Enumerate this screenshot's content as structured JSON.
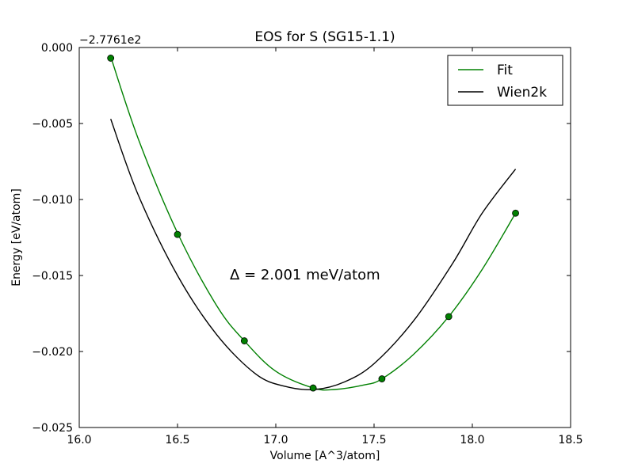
{
  "chart_data": {
    "type": "line",
    "title": "EOS for S (SG15-1.1)",
    "xlabel": "Volume [A^3/atom]",
    "ylabel": "Energy [eV/atom]",
    "offset_label": "−2.7761e2",
    "annotation": "Δ = 2.001 meV/atom",
    "xlim": [
      16.0,
      18.5
    ],
    "ylim": [
      -0.025,
      0.0
    ],
    "x_ticks": [
      16.0,
      16.5,
      17.0,
      17.5,
      18.0,
      18.5
    ],
    "x_tick_labels": [
      "16.0",
      "16.5",
      "17.0",
      "17.5",
      "18.0",
      "18.5"
    ],
    "y_ticks": [
      0.0,
      -0.005,
      -0.01,
      -0.015,
      -0.02,
      -0.025
    ],
    "y_tick_labels": [
      "0.000",
      "−0.005",
      "−0.010",
      "−0.015",
      "−0.020",
      "−0.025"
    ],
    "legend_position": "top-right",
    "grid": false,
    "points": {
      "color": "#008000",
      "x": [
        16.16,
        16.5,
        16.84,
        17.19,
        17.54,
        17.88,
        18.22
      ],
      "y": [
        -0.0007,
        -0.0123,
        -0.0193,
        -0.0224,
        -0.0218,
        -0.0177,
        -0.0109
      ]
    },
    "series": [
      {
        "name": "Fit",
        "color": "#008000",
        "x": [
          16.16,
          16.3,
          16.5,
          16.7,
          16.84,
          17.0,
          17.19,
          17.3,
          17.45,
          17.54,
          17.7,
          17.88,
          18.05,
          18.22
        ],
        "y": [
          -0.0006,
          -0.006,
          -0.0122,
          -0.017,
          -0.0193,
          -0.0213,
          -0.0224,
          -0.0225,
          -0.0222,
          -0.0218,
          -0.0202,
          -0.0177,
          -0.0146,
          -0.0109
        ]
      },
      {
        "name": "Wien2k",
        "color": "#000000",
        "x": [
          16.16,
          16.3,
          16.5,
          16.7,
          16.9,
          17.05,
          17.2,
          17.35,
          17.5,
          17.7,
          17.9,
          18.05,
          18.22
        ],
        "y": [
          -0.0047,
          -0.0097,
          -0.015,
          -0.0189,
          -0.0215,
          -0.0223,
          -0.0225,
          -0.022,
          -0.0208,
          -0.018,
          -0.0142,
          -0.0109,
          -0.008
        ]
      }
    ]
  }
}
